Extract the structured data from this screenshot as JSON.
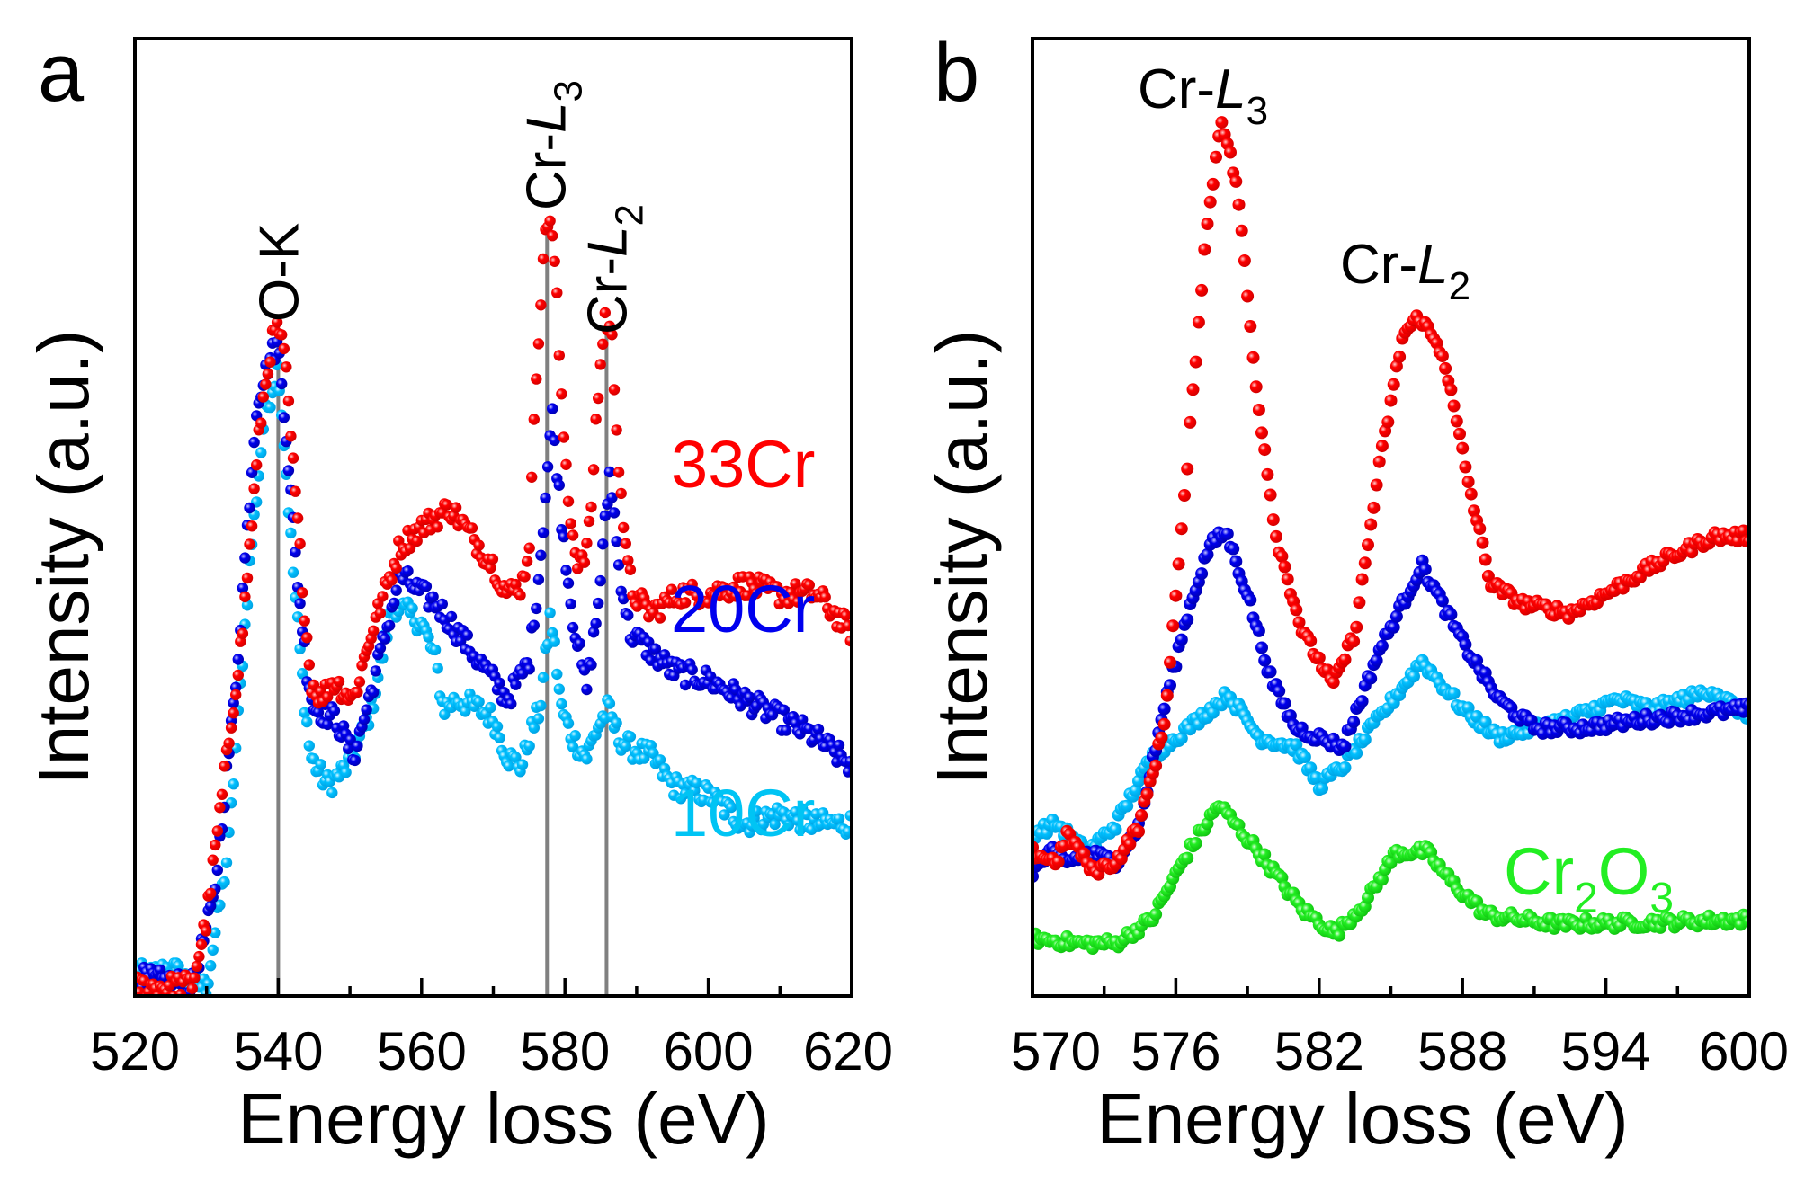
{
  "figure": {
    "panel_letters": [
      "a",
      "b"
    ]
  },
  "chart_data": [
    {
      "type": "scatter",
      "panel": "a",
      "title": "",
      "xlabel": "Energy loss (eV)",
      "ylabel": "Intensity (a.u.)",
      "xlim": [
        520,
        620
      ],
      "ylim": [
        0,
        1
      ],
      "xticks": [
        520,
        540,
        560,
        580,
        600,
        620
      ],
      "xtick_labels": [
        "520",
        "540",
        "560",
        "580",
        "600",
        "620"
      ],
      "minor_xticks": [
        530,
        550,
        570,
        590,
        610
      ],
      "yticks": [],
      "grid": false,
      "reference_lines": [
        540,
        577.5,
        585.8
      ],
      "annotations": [
        {
          "text": "O-K",
          "main": "O-K",
          "sub": "",
          "x": 540,
          "orientation": "vertical"
        },
        {
          "text": "Cr-L3",
          "main": "Cr-",
          "italic": "L",
          "sub": "3",
          "x": 577.5,
          "orientation": "vertical"
        },
        {
          "text": "Cr-L2",
          "main": "Cr-",
          "italic": "L",
          "sub": "2",
          "x": 585.8,
          "orientation": "vertical"
        }
      ],
      "series": [
        {
          "name": "33Cr",
          "label": "33Cr",
          "color": "#ff0000",
          "x": [
            520,
            524,
            528,
            530,
            532,
            535,
            537.5,
            539,
            540,
            541,
            542,
            543.5,
            544.5,
            546,
            547.5,
            549,
            550.5,
            553,
            557,
            560,
            562,
            564,
            566,
            568,
            570,
            572,
            574,
            575,
            576,
            577,
            578,
            578.8,
            579.5,
            580.5,
            581.5,
            582.5,
            583.5,
            584.5,
            585.6,
            586.5,
            587.5,
            588.5,
            589.5,
            592,
            596,
            600,
            605,
            610,
            615,
            620
          ],
          "y": [
            0.01,
            0.01,
            0.012,
            0.08,
            0.2,
            0.38,
            0.6,
            0.68,
            0.7,
            0.66,
            0.56,
            0.42,
            0.33,
            0.31,
            0.33,
            0.32,
            0.31,
            0.38,
            0.47,
            0.49,
            0.5,
            0.51,
            0.49,
            0.47,
            0.45,
            0.42,
            0.43,
            0.47,
            0.65,
            0.78,
            0.82,
            0.74,
            0.62,
            0.52,
            0.46,
            0.45,
            0.49,
            0.62,
            0.71,
            0.69,
            0.56,
            0.46,
            0.42,
            0.4,
            0.42,
            0.42,
            0.43,
            0.42,
            0.42,
            0.38
          ]
        },
        {
          "name": "20Cr",
          "label": "20Cr",
          "color": "#0000ee",
          "x": [
            520,
            524,
            528,
            531,
            534,
            537,
            539,
            540,
            541,
            542.5,
            544,
            545,
            548,
            550.5,
            552,
            554,
            557,
            560,
            562,
            567,
            572,
            575,
            576.5,
            578.2,
            579.5,
            581,
            583,
            584.5,
            586.3,
            587.5,
            589,
            592,
            595,
            600,
            605,
            610,
            615,
            620
          ],
          "y": [
            0.02,
            0.015,
            0.012,
            0.1,
            0.32,
            0.62,
            0.67,
            0.68,
            0.6,
            0.45,
            0.34,
            0.3,
            0.29,
            0.25,
            0.29,
            0.35,
            0.44,
            0.42,
            0.41,
            0.36,
            0.31,
            0.35,
            0.45,
            0.61,
            0.5,
            0.4,
            0.32,
            0.4,
            0.55,
            0.45,
            0.38,
            0.36,
            0.34,
            0.33,
            0.31,
            0.29,
            0.27,
            0.24
          ]
        },
        {
          "name": "10Cr",
          "label": "10Cr",
          "color": "#00bfff",
          "x": [
            520,
            522,
            525,
            528,
            530,
            533,
            536,
            538,
            540,
            541,
            542,
            543.5,
            544.5,
            546,
            547,
            549.6,
            551,
            553,
            556,
            558,
            560,
            562,
            563,
            565,
            568,
            570,
            572,
            574,
            575,
            576.5,
            578,
            579.5,
            581,
            583,
            584.5,
            586,
            587.5,
            589,
            592,
            595,
            600,
            605,
            610,
            615,
            620
          ],
          "y": [
            0.025,
            0.02,
            0.03,
            0.012,
            0.01,
            0.15,
            0.45,
            0.6,
            0.66,
            0.56,
            0.45,
            0.32,
            0.25,
            0.23,
            0.22,
            0.24,
            0.26,
            0.3,
            0.41,
            0.4,
            0.39,
            0.35,
            0.3,
            0.31,
            0.3,
            0.29,
            0.25,
            0.24,
            0.27,
            0.3,
            0.4,
            0.3,
            0.27,
            0.25,
            0.28,
            0.3,
            0.27,
            0.26,
            0.25,
            0.22,
            0.21,
            0.18,
            0.19,
            0.18,
            0.18
          ]
        }
      ]
    },
    {
      "type": "scatter",
      "panel": "b",
      "title": "",
      "xlabel": "Energy loss (eV)",
      "ylabel": "Intensity (a.u.)",
      "xlim": [
        570,
        600
      ],
      "ylim": [
        0,
        1
      ],
      "xticks": [
        570,
        576,
        582,
        588,
        594,
        600
      ],
      "xtick_labels": [
        "570",
        "576",
        "582",
        "588",
        "594",
        "600"
      ],
      "minor_xticks": [
        573,
        579,
        585,
        591,
        597
      ],
      "yticks": [],
      "grid": false,
      "annotations": [
        {
          "text": "Cr-L3",
          "main": "Cr-",
          "italic": "L",
          "sub": "3",
          "x": 577.9,
          "orientation": "horizontal"
        },
        {
          "text": "Cr-L2",
          "main": "Cr-",
          "italic": "L",
          "sub": "2",
          "x": 586.2,
          "orientation": "horizontal"
        }
      ],
      "series": [
        {
          "name": "33Cr",
          "color": "#ff0000",
          "x": [
            570,
            571,
            571.5,
            572.5,
            573.5,
            574.5,
            575.5,
            576.3,
            577.2,
            577.9,
            578.6,
            579.3,
            580.2,
            581.3,
            582.6,
            583.5,
            584.5,
            585.5,
            586.2,
            587.2,
            588.3,
            589.2,
            590.5,
            592.5,
            594,
            596,
            598.5,
            600
          ],
          "y": [
            0.15,
            0.14,
            0.17,
            0.13,
            0.14,
            0.18,
            0.28,
            0.5,
            0.78,
            0.92,
            0.84,
            0.65,
            0.48,
            0.38,
            0.325,
            0.38,
            0.55,
            0.69,
            0.71,
            0.67,
            0.53,
            0.43,
            0.41,
            0.4,
            0.42,
            0.45,
            0.48,
            0.48
          ]
        },
        {
          "name": "20Cr",
          "color": "#0000ee",
          "x": [
            570,
            570.8,
            571.5,
            572.3,
            573.5,
            574.5,
            575.5,
            576.5,
            577.4,
            578.1,
            579,
            580,
            581,
            583,
            584.5,
            586.3,
            588,
            589.5,
            591,
            593,
            596,
            600
          ],
          "y": [
            0.13,
            0.15,
            0.14,
            0.15,
            0.14,
            0.18,
            0.3,
            0.4,
            0.47,
            0.485,
            0.42,
            0.33,
            0.28,
            0.26,
            0.36,
            0.45,
            0.37,
            0.31,
            0.28,
            0.28,
            0.29,
            0.3
          ]
        },
        {
          "name": "10Cr",
          "color": "#00bfff",
          "x": [
            570,
            571,
            572.3,
            573.5,
            575,
            576.5,
            578.2,
            579.5,
            581,
            582,
            583,
            584.5,
            586.3,
            588,
            589.5,
            591,
            592.5,
            594.5,
            596,
            598.5,
            600
          ],
          "y": [
            0.17,
            0.18,
            0.15,
            0.18,
            0.25,
            0.28,
            0.315,
            0.27,
            0.26,
            0.22,
            0.24,
            0.29,
            0.35,
            0.3,
            0.27,
            0.28,
            0.29,
            0.31,
            0.3,
            0.32,
            0.29
          ]
        },
        {
          "name": "Cr2O3",
          "label": "Cr2O3",
          "label_main": "Cr",
          "label_sub1": "2",
          "label_mid": "O",
          "label_sub2": "3",
          "color": "#22ee22",
          "x": [
            570,
            572,
            573.5,
            575,
            576.5,
            577.8,
            579.5,
            581.3,
            582.7,
            584,
            585.2,
            586.5,
            587.5,
            589,
            592,
            596,
            600
          ],
          "y": [
            0.06,
            0.055,
            0.055,
            0.08,
            0.15,
            0.2,
            0.15,
            0.09,
            0.065,
            0.1,
            0.15,
            0.151,
            0.12,
            0.085,
            0.075,
            0.077,
            0.08
          ]
        }
      ]
    }
  ]
}
